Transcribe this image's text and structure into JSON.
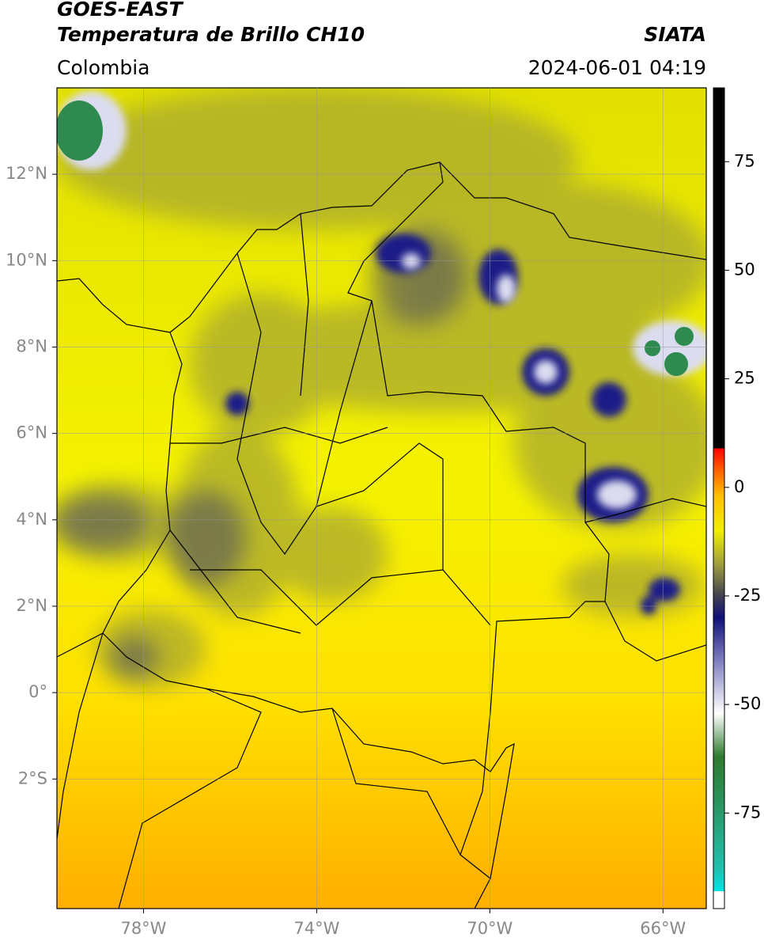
{
  "header": {
    "title_line1": "GOES-EAST",
    "title_line2": "Temperatura de Brillo CH10",
    "agency": "SIATA",
    "region": "Colombia",
    "datetime": "2024-06-01 04:19"
  },
  "map": {
    "xlim": [
      -80,
      -65
    ],
    "ylim": [
      -5,
      14
    ],
    "xticks": [
      {
        "value": -78,
        "label": "78°W"
      },
      {
        "value": -74,
        "label": "74°W"
      },
      {
        "value": -70,
        "label": "70°W"
      },
      {
        "value": -66,
        "label": "66°W"
      }
    ],
    "yticks": [
      {
        "value": 12,
        "label": "12°N"
      },
      {
        "value": 10,
        "label": "10°N"
      },
      {
        "value": 8,
        "label": "8°N"
      },
      {
        "value": 6,
        "label": "6°N"
      },
      {
        "value": 4,
        "label": "4°N"
      },
      {
        "value": 2,
        "label": "2°N"
      },
      {
        "value": 0,
        "label": "0°"
      },
      {
        "value": -2,
        "label": "2°S"
      }
    ],
    "grid": true
  },
  "colorbar": {
    "lim": [
      -97,
      92
    ],
    "ticks": [
      75,
      50,
      25,
      0,
      -25,
      -50,
      -75
    ],
    "stops": [
      {
        "value": -97,
        "color": "#ffffff"
      },
      {
        "value": -93,
        "color": "#ffffff"
      },
      {
        "value": -93,
        "color": "#00e5e5"
      },
      {
        "value": -88,
        "color": "#20c0b0"
      },
      {
        "value": -75,
        "color": "#2a9a6a"
      },
      {
        "value": -62,
        "color": "#2e7a2e"
      },
      {
        "value": -52,
        "color": "#ffffff"
      },
      {
        "value": -40,
        "color": "#8080c0"
      },
      {
        "value": -30,
        "color": "#10107a"
      },
      {
        "value": -25,
        "color": "#404050"
      },
      {
        "value": -18,
        "color": "#9a9a40"
      },
      {
        "value": -10,
        "color": "#f0f000"
      },
      {
        "value": -2,
        "color": "#ffc000"
      },
      {
        "value": 4,
        "color": "#ff6000"
      },
      {
        "value": 9,
        "color": "#ff0000"
      },
      {
        "value": 9,
        "color": "#000000"
      },
      {
        "value": 92,
        "color": "#000000"
      }
    ]
  }
}
